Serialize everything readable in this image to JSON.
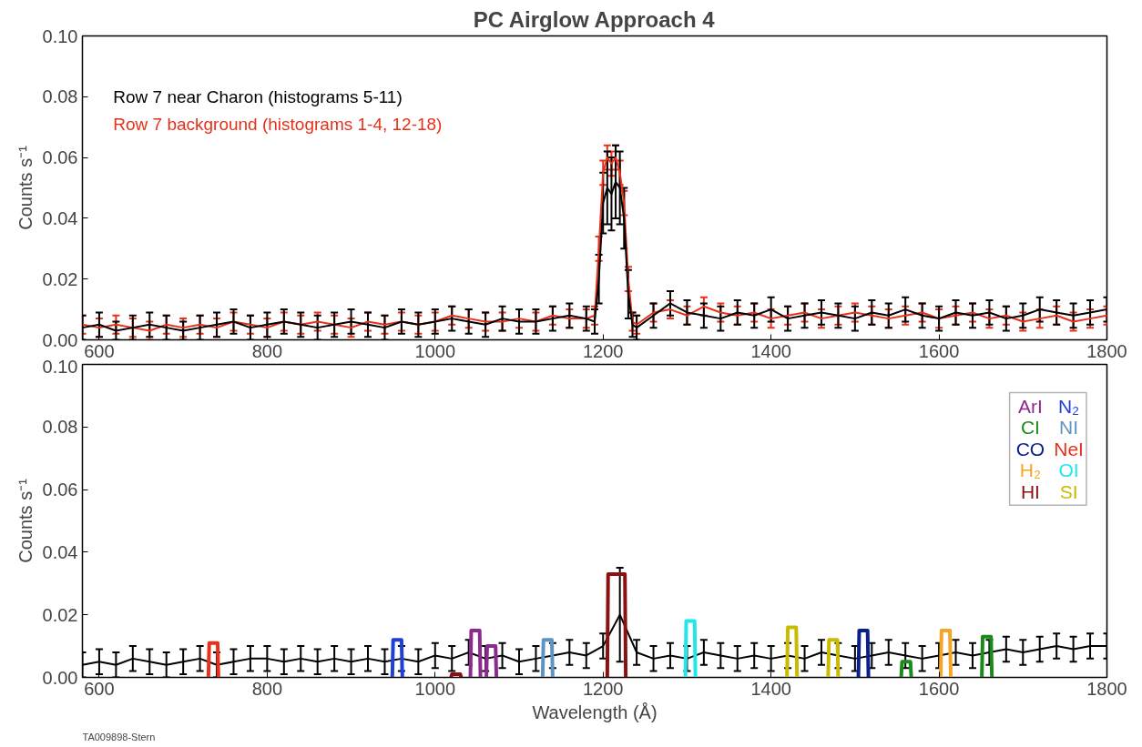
{
  "chart_data": [
    {
      "type": "line",
      "title": "PC Airglow Approach 4",
      "ylabel": "Counts s⁻¹",
      "legend": "top left",
      "xlim": [
        580,
        1800
      ],
      "xticks": [
        600,
        800,
        1000,
        1200,
        1400,
        1600,
        1800
      ],
      "ylim": [
        0,
        0.1
      ],
      "yticks": [
        {
          "value": 0,
          "label": "0.00"
        },
        {
          "value": 0.02,
          "label": "0.02"
        },
        {
          "value": 0.04,
          "label": "0.04"
        },
        {
          "value": 0.06,
          "label": "0.06"
        },
        {
          "value": 0.08,
          "label": "0.08"
        },
        {
          "value": 0.1,
          "label": "0.10"
        }
      ],
      "series": [
        {
          "name": "Row 7 background (histograms 1-4, 12-18)",
          "color": "#e8301a",
          "x": [
            580,
            600,
            620,
            640,
            660,
            680,
            700,
            720,
            740,
            760,
            780,
            800,
            820,
            840,
            860,
            880,
            900,
            920,
            940,
            960,
            980,
            1000,
            1020,
            1040,
            1060,
            1080,
            1100,
            1120,
            1140,
            1160,
            1180,
            1190,
            1195,
            1200,
            1205,
            1210,
            1215,
            1220,
            1225,
            1230,
            1235,
            1240,
            1260,
            1280,
            1300,
            1320,
            1340,
            1360,
            1380,
            1400,
            1420,
            1440,
            1460,
            1480,
            1500,
            1520,
            1540,
            1560,
            1580,
            1600,
            1620,
            1640,
            1660,
            1680,
            1700,
            1720,
            1740,
            1760,
            1780,
            1800
          ],
          "values": [
            0.005,
            0.004,
            0.005,
            0.004,
            0.003,
            0.005,
            0.004,
            0.005,
            0.004,
            0.006,
            0.005,
            0.004,
            0.006,
            0.005,
            0.006,
            0.005,
            0.004,
            0.006,
            0.005,
            0.006,
            0.005,
            0.006,
            0.008,
            0.007,
            0.006,
            0.006,
            0.007,
            0.006,
            0.008,
            0.007,
            0.007,
            0.008,
            0.03,
            0.055,
            0.06,
            0.058,
            0.06,
            0.055,
            0.045,
            0.02,
            0.006,
            0.005,
            0.009,
            0.01,
            0.008,
            0.011,
            0.009,
            0.008,
            0.009,
            0.007,
            0.008,
            0.009,
            0.007,
            0.008,
            0.009,
            0.008,
            0.007,
            0.008,
            0.009,
            0.007,
            0.008,
            0.009,
            0.007,
            0.008,
            0.006,
            0.007,
            0.008,
            0.006,
            0.007,
            0.008
          ],
          "errors": [
            0.003,
            0.003,
            0.003,
            0.003,
            0.003,
            0.003,
            0.003,
            0.003,
            0.003,
            0.003,
            0.003,
            0.003,
            0.003,
            0.003,
            0.003,
            0.003,
            0.003,
            0.003,
            0.003,
            0.003,
            0.003,
            0.003,
            0.003,
            0.003,
            0.003,
            0.003,
            0.003,
            0.003,
            0.003,
            0.003,
            0.003,
            0.003,
            0.004,
            0.004,
            0.004,
            0.004,
            0.004,
            0.004,
            0.004,
            0.004,
            0.003,
            0.003,
            0.003,
            0.003,
            0.003,
            0.003,
            0.003,
            0.003,
            0.003,
            0.003,
            0.003,
            0.003,
            0.003,
            0.003,
            0.003,
            0.003,
            0.003,
            0.003,
            0.003,
            0.003,
            0.003,
            0.003,
            0.003,
            0.003,
            0.003,
            0.003,
            0.003,
            0.003,
            0.003,
            0.003
          ]
        },
        {
          "name": "Row 7 near Charon (histograms 5-11)",
          "color": "#000000",
          "x": [
            580,
            600,
            620,
            640,
            660,
            680,
            700,
            720,
            740,
            760,
            780,
            800,
            820,
            840,
            860,
            880,
            900,
            920,
            940,
            960,
            980,
            1000,
            1020,
            1040,
            1060,
            1080,
            1100,
            1120,
            1140,
            1160,
            1180,
            1190,
            1195,
            1200,
            1205,
            1210,
            1215,
            1220,
            1225,
            1230,
            1235,
            1240,
            1260,
            1280,
            1300,
            1320,
            1340,
            1360,
            1380,
            1400,
            1420,
            1440,
            1460,
            1480,
            1500,
            1520,
            1540,
            1560,
            1580,
            1600,
            1620,
            1640,
            1660,
            1680,
            1700,
            1720,
            1740,
            1760,
            1780,
            1800
          ],
          "values": [
            0.004,
            0.005,
            0.003,
            0.004,
            0.005,
            0.004,
            0.003,
            0.004,
            0.005,
            0.006,
            0.004,
            0.005,
            0.006,
            0.005,
            0.004,
            0.005,
            0.006,
            0.005,
            0.004,
            0.006,
            0.005,
            0.006,
            0.007,
            0.006,
            0.005,
            0.007,
            0.006,
            0.006,
            0.007,
            0.008,
            0.007,
            0.006,
            0.02,
            0.045,
            0.05,
            0.048,
            0.052,
            0.05,
            0.04,
            0.015,
            0.005,
            0.004,
            0.008,
            0.012,
            0.009,
            0.008,
            0.007,
            0.009,
            0.008,
            0.01,
            0.007,
            0.008,
            0.009,
            0.008,
            0.007,
            0.009,
            0.008,
            0.01,
            0.008,
            0.007,
            0.009,
            0.008,
            0.009,
            0.007,
            0.008,
            0.01,
            0.009,
            0.008,
            0.009,
            0.01
          ],
          "errors": [
            0.004,
            0.004,
            0.003,
            0.004,
            0.004,
            0.004,
            0.003,
            0.004,
            0.004,
            0.004,
            0.004,
            0.004,
            0.004,
            0.004,
            0.004,
            0.004,
            0.004,
            0.004,
            0.004,
            0.004,
            0.004,
            0.004,
            0.004,
            0.004,
            0.004,
            0.004,
            0.004,
            0.004,
            0.004,
            0.004,
            0.004,
            0.004,
            0.008,
            0.01,
            0.012,
            0.012,
            0.012,
            0.012,
            0.01,
            0.008,
            0.004,
            0.004,
            0.004,
            0.004,
            0.004,
            0.004,
            0.004,
            0.004,
            0.004,
            0.004,
            0.004,
            0.004,
            0.004,
            0.004,
            0.004,
            0.004,
            0.004,
            0.004,
            0.004,
            0.004,
            0.004,
            0.004,
            0.004,
            0.004,
            0.004,
            0.004,
            0.004,
            0.004,
            0.004,
            0.004
          ]
        }
      ]
    },
    {
      "type": "line",
      "xlabel": "Wavelength (Å)",
      "ylabel": "Counts s⁻¹",
      "legend": "top right",
      "annotations": [
        "TA009898-Stern"
      ],
      "xlim": [
        580,
        1800
      ],
      "xticks": [
        600,
        800,
        1000,
        1200,
        1400,
        1600,
        1800
      ],
      "ylim": [
        0,
        0.1
      ],
      "yticks": [
        {
          "value": 0,
          "label": "0.00"
        },
        {
          "value": 0.02,
          "label": "0.02"
        },
        {
          "value": 0.04,
          "label": "0.04"
        },
        {
          "value": 0.06,
          "label": "0.06"
        },
        {
          "value": 0.08,
          "label": "0.08"
        },
        {
          "value": 0.1,
          "label": "0.10"
        }
      ],
      "series": [
        {
          "color": "#000000",
          "x": [
            580,
            600,
            620,
            640,
            660,
            680,
            700,
            720,
            740,
            760,
            780,
            800,
            820,
            840,
            860,
            880,
            900,
            920,
            940,
            960,
            980,
            1000,
            1020,
            1040,
            1060,
            1080,
            1100,
            1120,
            1140,
            1160,
            1180,
            1200,
            1220,
            1240,
            1260,
            1280,
            1300,
            1320,
            1340,
            1360,
            1380,
            1400,
            1420,
            1440,
            1460,
            1480,
            1500,
            1520,
            1540,
            1560,
            1580,
            1600,
            1620,
            1640,
            1660,
            1680,
            1700,
            1720,
            1740,
            1760,
            1780,
            1800
          ],
          "values": [
            0.004,
            0.005,
            0.004,
            0.006,
            0.005,
            0.004,
            0.005,
            0.006,
            0.004,
            0.005,
            0.006,
            0.006,
            0.005,
            0.006,
            0.005,
            0.006,
            0.005,
            0.006,
            0.005,
            0.006,
            0.005,
            0.007,
            0.006,
            0.008,
            0.006,
            0.007,
            0.005,
            0.006,
            0.007,
            0.008,
            0.007,
            0.01,
            0.02,
            0.008,
            0.006,
            0.007,
            0.006,
            0.008,
            0.007,
            0.006,
            0.007,
            0.006,
            0.007,
            0.006,
            0.008,
            0.007,
            0.006,
            0.007,
            0.008,
            0.007,
            0.006,
            0.007,
            0.008,
            0.007,
            0.008,
            0.009,
            0.008,
            0.009,
            0.01,
            0.009,
            0.01,
            0.01
          ],
          "errors": [
            0.004,
            0.004,
            0.004,
            0.004,
            0.004,
            0.004,
            0.004,
            0.004,
            0.004,
            0.004,
            0.004,
            0.004,
            0.004,
            0.004,
            0.004,
            0.004,
            0.004,
            0.004,
            0.004,
            0.004,
            0.004,
            0.004,
            0.004,
            0.004,
            0.004,
            0.004,
            0.004,
            0.004,
            0.004,
            0.004,
            0.004,
            0.004,
            0.015,
            0.004,
            0.004,
            0.004,
            0.004,
            0.004,
            0.004,
            0.004,
            0.004,
            0.004,
            0.004,
            0.004,
            0.004,
            0.004,
            0.004,
            0.004,
            0.004,
            0.004,
            0.004,
            0.004,
            0.004,
            0.004,
            0.004,
            0.004,
            0.004,
            0.004,
            0.004,
            0.004,
            0.004,
            0.004
          ]
        },
        {
          "name": "ArI",
          "color": "#8e2a8e",
          "x": [
            1042,
            1043,
            1053,
            1054,
            1055,
            1061,
            1062,
            1072,
            1073
          ],
          "values": [
            0,
            0.015,
            0.015,
            0,
            null,
            0,
            0.01,
            0.01,
            0
          ]
        },
        {
          "name": "CI",
          "color": "#1a8a1a",
          "x": [
            1555,
            1556,
            1566,
            1567,
            1568,
            1651,
            1652,
            1662,
            1663
          ],
          "values": [
            0,
            0.005,
            0.005,
            0,
            null,
            0,
            0.013,
            0.013,
            0
          ]
        },
        {
          "name": "CO",
          "color": "#0a1f8f",
          "x": [
            1504,
            1505,
            1515,
            1516
          ],
          "values": [
            0,
            0.015,
            0.015,
            0
          ]
        },
        {
          "name": "H₂",
          "color": "#f5a623",
          "x": [
            1602,
            1603,
            1613,
            1614
          ],
          "values": [
            0,
            0.015,
            0.015,
            0
          ]
        },
        {
          "name": "HI",
          "color": "#8b1010",
          "x": [
            1019,
            1020,
            1030,
            1031,
            1100,
            1205,
            1206,
            1226,
            1227
          ],
          "values": [
            0,
            0.001,
            0.001,
            0,
            null,
            0,
            0.033,
            0.033,
            0
          ]
        },
        {
          "name": "N₂",
          "color": "#1f3fd8",
          "x": [
            949,
            950,
            960,
            961
          ],
          "values": [
            0,
            0.012,
            0.012,
            0
          ]
        },
        {
          "name": "NI",
          "color": "#5f93c0",
          "x": [
            1128,
            1129,
            1139,
            1140
          ],
          "values": [
            0,
            0.012,
            0.012,
            0
          ]
        },
        {
          "name": "NeI",
          "color": "#e8301a",
          "x": [
            730,
            731,
            741,
            742
          ],
          "values": [
            0,
            0.011,
            0.011,
            0
          ]
        },
        {
          "name": "OI",
          "color": "#22e6ee",
          "x": [
            1298,
            1299,
            1309,
            1310
          ],
          "values": [
            0,
            0.018,
            0.018,
            0
          ]
        },
        {
          "name": "SI",
          "color": "#c9bc00",
          "x": [
            1419,
            1420,
            1430,
            1431,
            1432,
            1468,
            1469,
            1479,
            1480
          ],
          "values": [
            0,
            0.016,
            0.016,
            0,
            null,
            0,
            0.012,
            0.012,
            0
          ]
        }
      ]
    }
  ]
}
